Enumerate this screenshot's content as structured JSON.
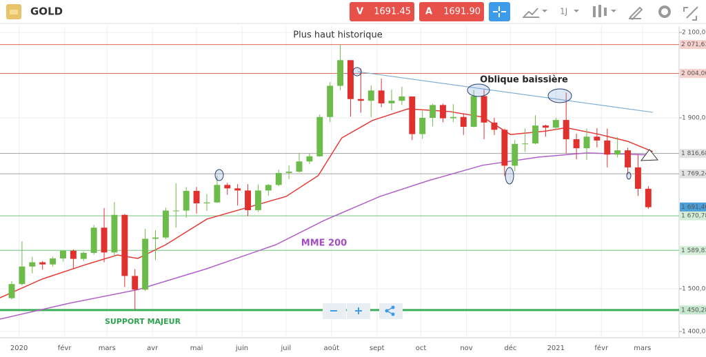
{
  "toolbar": {
    "symbol": "GOLD",
    "bid_label": "V",
    "bid": "1691.45",
    "ask_label": "A",
    "ask": "1691.90",
    "period": "1J"
  },
  "chart_data": {
    "type": "candlestick",
    "up_color": "#6dbb4a",
    "down_color": "#e0312f",
    "xlim": [
      -13,
      450
    ],
    "ylim": [
      1385.5,
      2114.5
    ],
    "grid": true,
    "xticks": [
      {
        "value": 0,
        "label": "2020"
      },
      {
        "value": 31,
        "label": "févr"
      },
      {
        "value": 60,
        "label": "mars"
      },
      {
        "value": 91,
        "label": "avr"
      },
      {
        "value": 121,
        "label": "mai"
      },
      {
        "value": 152,
        "label": "juin"
      },
      {
        "value": 182,
        "label": "juil"
      },
      {
        "value": 213,
        "label": "août"
      },
      {
        "value": 244,
        "label": "sept"
      },
      {
        "value": 274,
        "label": "oct"
      },
      {
        "value": 305,
        "label": "nov"
      },
      {
        "value": 335,
        "label": "déc"
      },
      {
        "value": 366,
        "label": "2021"
      },
      {
        "value": 397,
        "label": "févr"
      },
      {
        "value": 425,
        "label": "mars"
      }
    ],
    "yticks": [
      {
        "value": 2100,
        "label": "2 100,00"
      },
      {
        "value": 1900,
        "label": "1 900,00"
      },
      {
        "value": 1500,
        "label": "1 500,00"
      },
      {
        "value": 1400,
        "label": "1 400,00"
      }
    ],
    "candles": {
      "x": [
        -5,
        2,
        9,
        16,
        23,
        30,
        37,
        44,
        51,
        58,
        65,
        72,
        79,
        86,
        93,
        100,
        107,
        114,
        121,
        128,
        135,
        142,
        149,
        156,
        163,
        170,
        177,
        184,
        191,
        198,
        205,
        212,
        219,
        226,
        233,
        240,
        247,
        254,
        261,
        268,
        275,
        282,
        289,
        296,
        303,
        310,
        317,
        324,
        331,
        338,
        345,
        352,
        359,
        366,
        373,
        380,
        387,
        394,
        401,
        408,
        415,
        422,
        429
      ],
      "open": [
        1478,
        1511,
        1552,
        1562,
        1557,
        1571,
        1589,
        1570,
        1584,
        1643,
        1585,
        1673,
        1530,
        1498,
        1617,
        1620,
        1683,
        1683,
        1729,
        1700,
        1702,
        1743,
        1735,
        1730,
        1684,
        1730,
        1743,
        1771,
        1774,
        1798,
        1810,
        1902,
        1975,
        2035,
        1944,
        1940,
        1964,
        1934,
        1940,
        1950,
        1862,
        1900,
        1930,
        1899,
        1902,
        1879,
        1951,
        1889,
        1872,
        1788,
        1839,
        1840,
        1882,
        1877,
        1895,
        1850,
        1829,
        1856,
        1847,
        1814,
        1824,
        1784,
        1734
      ],
      "high": [
        1518,
        1611,
        1575,
        1565,
        1575,
        1590,
        1592,
        1587,
        1649,
        1689,
        1703,
        1675,
        1546,
        1640,
        1637,
        1690,
        1747,
        1738,
        1738,
        1722,
        1765,
        1748,
        1745,
        1745,
        1744,
        1745,
        1779,
        1789,
        1818,
        1816,
        1908,
        1984,
        2072,
        2015,
        2015,
        1976,
        1992,
        1966,
        1973,
        1950,
        1917,
        1933,
        1933,
        1932,
        1910,
        1965,
        1966,
        1900,
        1875,
        1848,
        1875,
        1906,
        1884,
        1900,
        1959,
        1863,
        1875,
        1876,
        1875,
        1855,
        1830,
        1815,
        1740
      ],
      "low": [
        1475,
        1508,
        1536,
        1545,
        1552,
        1564,
        1547,
        1565,
        1580,
        1562,
        1575,
        1504,
        1451,
        1495,
        1567,
        1616,
        1643,
        1666,
        1676,
        1682,
        1701,
        1720,
        1695,
        1670,
        1680,
        1718,
        1740,
        1757,
        1772,
        1792,
        1809,
        1890,
        1965,
        1903,
        1912,
        1902,
        1925,
        1918,
        1930,
        1848,
        1851,
        1880,
        1890,
        1890,
        1860,
        1878,
        1850,
        1860,
        1764,
        1775,
        1820,
        1838,
        1856,
        1872,
        1817,
        1803,
        1802,
        1831,
        1784,
        1807,
        1768,
        1717,
        1687
      ],
      "close": [
        1511,
        1552,
        1562,
        1557,
        1571,
        1589,
        1570,
        1584,
        1643,
        1585,
        1673,
        1530,
        1498,
        1617,
        1620,
        1683,
        1683,
        1729,
        1700,
        1702,
        1743,
        1735,
        1730,
        1684,
        1730,
        1743,
        1771,
        1774,
        1798,
        1810,
        1902,
        1975,
        2035,
        1944,
        1940,
        1964,
        1934,
        1940,
        1950,
        1862,
        1900,
        1930,
        1899,
        1902,
        1879,
        1951,
        1889,
        1872,
        1788,
        1839,
        1840,
        1882,
        1877,
        1895,
        1850,
        1829,
        1856,
        1847,
        1814,
        1824,
        1784,
        1734,
        1691
      ]
    },
    "lines": [
      {
        "color": "#e53935",
        "x": [
          -13,
          16,
          44,
          67,
          81,
          100,
          128,
          182,
          204,
          220,
          241,
          265,
          293,
          316,
          335,
          359,
          373,
          396,
          415,
          432
        ],
        "values": [
          1479,
          1523,
          1555,
          1579,
          1571,
          1603,
          1663,
          1716,
          1765,
          1853,
          1894,
          1921,
          1915,
          1902,
          1861,
          1869,
          1877,
          1861,
          1845,
          1821
        ]
      },
      {
        "name": "MME 200",
        "color": "#b15fc9",
        "x": [
          -13,
          34,
          81,
          128,
          175,
          208,
          246,
          279,
          316,
          354,
          387,
          432
        ],
        "values": [
          1429,
          1466,
          1498,
          1547,
          1603,
          1660,
          1716,
          1753,
          1789,
          1808,
          1818,
          1813
        ]
      }
    ],
    "trendline": {
      "color": "#7fb0d8",
      "x": [
        231,
        432
      ],
      "values": [
        2008,
        1913
      ]
    },
    "levels": [
      {
        "value": 2071.63,
        "label": "2 071,63",
        "color": "#e0685a"
      },
      {
        "value": 2004.0,
        "label": "2 004,00",
        "color": "#e0685a"
      },
      {
        "value": 1816.68,
        "label": "1 816,68",
        "color": "#a0a0a0"
      },
      {
        "value": 1769.24,
        "label": "1 769,24",
        "color": "#a0a0a0"
      },
      {
        "value": 1670.78,
        "label": "1 670,78",
        "color": "#6cc47a"
      },
      {
        "value": 1589.83,
        "label": "1 589,83",
        "color": "#6cc47a"
      },
      {
        "value": 1450.28,
        "label": "1 450,28",
        "color": "#3fae5a",
        "bold": true
      }
    ],
    "last_price": {
      "value": 1691.46,
      "label": "1 691,46",
      "color": "#4a9fd8"
    },
    "annotations": {
      "ath": "Plus haut historique",
      "oblique": "Oblique baissière",
      "support": "SUPPORT MAJEUR"
    }
  }
}
